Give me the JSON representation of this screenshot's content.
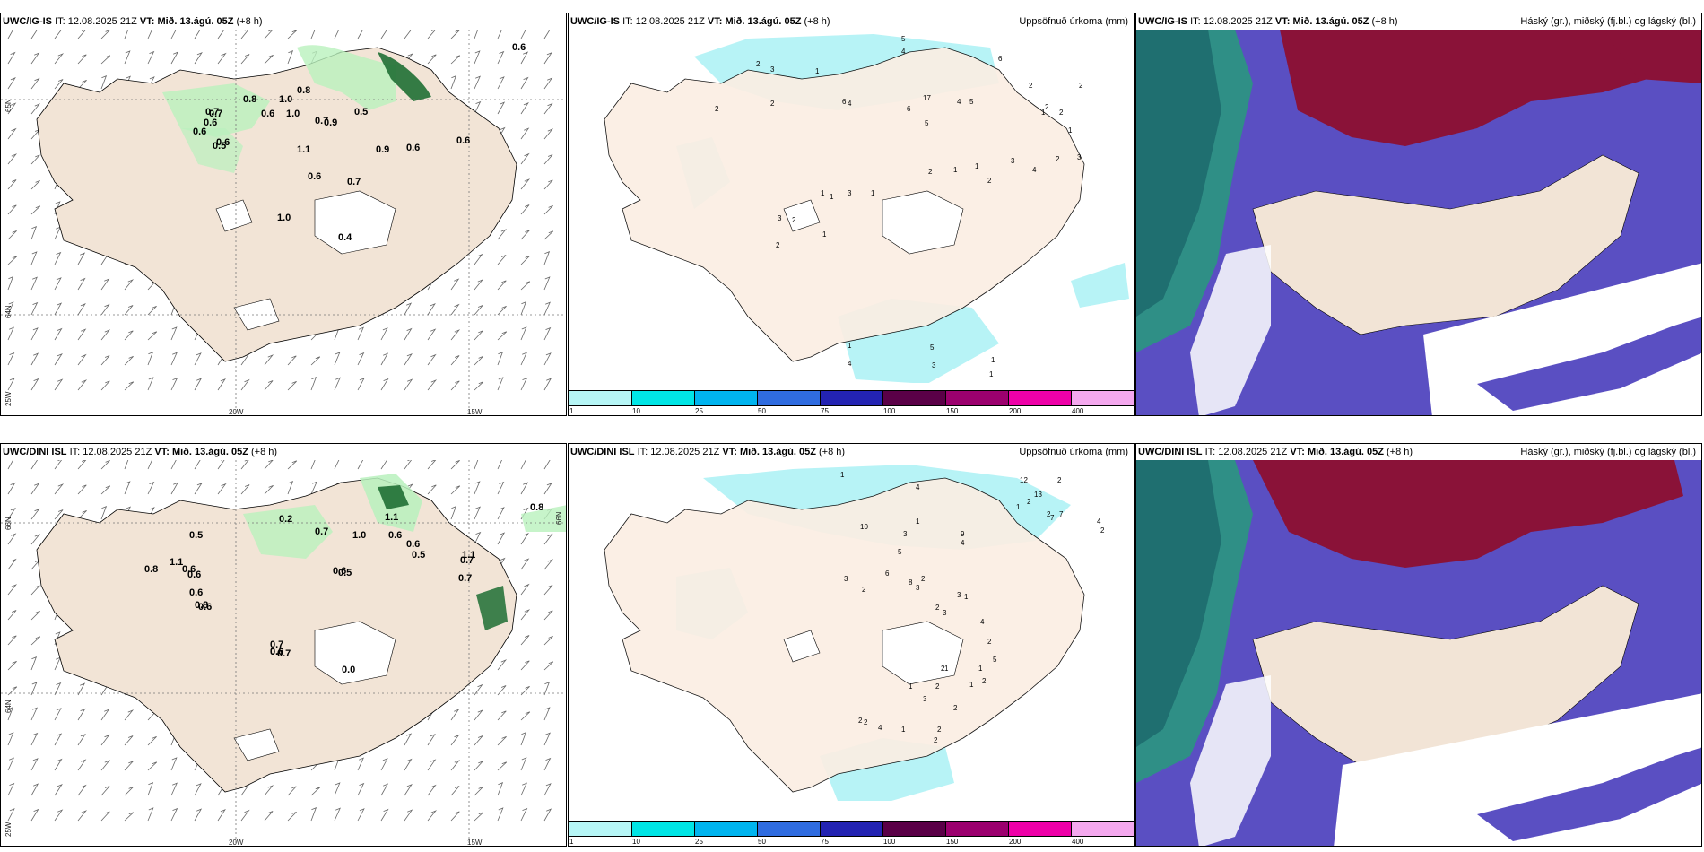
{
  "panels": {
    "p1": {
      "model": "UWC/IG-IS",
      "it_label": "IT:",
      "it_value": "12.08.2025 21Z",
      "vt_label": "VT:",
      "vt_value": "Mið. 13.ágú. 05Z",
      "lead": "(+8 h)",
      "right_title": "",
      "axis": {
        "lat1": "65N",
        "lat2": "64N",
        "lon1": "20W",
        "lon2": "15W",
        "edge": "25W"
      },
      "labels": [
        "0.6",
        "0.7",
        "0.8",
        "1.0",
        "0.8",
        "0.7",
        "0.9",
        "0.5",
        "1.1",
        "0.6",
        "0.6",
        "0.9",
        "0.6",
        "0.6",
        "0.7",
        "1.0",
        "0.4",
        "0.6",
        "0.5",
        "0.6",
        "0.7",
        "1.0",
        "0.6"
      ]
    },
    "p2": {
      "model": "UWC/IG-IS",
      "it_label": "IT:",
      "it_value": "12.08.2025 21Z",
      "vt_label": "VT:",
      "vt_value": "Mið. 13.ágú. 05Z",
      "lead": "(+8 h)",
      "right_title": "Uppsöfnuð úrkoma (mm)",
      "labels": [
        "5",
        "4",
        "2",
        "3",
        "2",
        "1",
        "6",
        "2",
        "4",
        "6",
        "5",
        "17",
        "4",
        "5",
        "6",
        "2",
        "2",
        "1",
        "1",
        "3",
        "2",
        "4",
        "3",
        "2",
        "1",
        "1",
        "2",
        "1",
        "3",
        "1",
        "1",
        "3",
        "2",
        "2",
        "1",
        "1",
        "4",
        "5",
        "3",
        "1",
        "1",
        "2",
        "2"
      ]
    },
    "p3": {
      "model": "UWC/IG-IS",
      "it_label": "IT:",
      "it_value": "12.08.2025 21Z",
      "vt_label": "VT:",
      "vt_value": "Mið. 13.ágú. 05Z",
      "lead": "(+8 h)",
      "right_title": "Háský (gr.), miðský (fj.bl.) og lágský (bl.)"
    },
    "p4": {
      "model": "UWC/DINI ISL",
      "it_label": "IT:",
      "it_value": "12.08.2025 21Z",
      "vt_label": "VT:",
      "vt_value": "Mið. 13.ágú. 05Z",
      "lead": "(+8 h)",
      "right_title": "",
      "axis": {
        "lat1": "66N",
        "lat2": "64N",
        "lon1": "20W",
        "lon2": "15W",
        "edge": "25W",
        "lat_right": "66N"
      },
      "labels": [
        "0.5",
        "0.8",
        "1.1",
        "0.6",
        "0.6",
        "0.6",
        "0.8",
        "0.5",
        "0.6",
        "0.7",
        "0.6",
        "0.2",
        "0.7",
        "1.0",
        "1.1",
        "0.6",
        "0.6",
        "0.5",
        "0.6",
        "0.7",
        "1.1",
        "0.7",
        "0.8",
        "0.6",
        "0.7",
        "0.0"
      ]
    },
    "p5": {
      "model": "UWC/DINI ISL",
      "it_label": "IT:",
      "it_value": "12.08.2025 21Z",
      "vt_label": "VT:",
      "vt_value": "Mið. 13.ágú. 05Z",
      "lead": "(+8 h)",
      "right_title": "Uppsöfnuð úrkoma (mm)",
      "labels": [
        "1",
        "4",
        "12",
        "2",
        "13",
        "2",
        "1",
        "2",
        "7",
        "7",
        "4",
        "2",
        "1",
        "3",
        "5",
        "10",
        "9",
        "4",
        "2",
        "3",
        "2",
        "6",
        "8",
        "3",
        "3",
        "1",
        "2",
        "3",
        "4",
        "2",
        "5",
        "1",
        "1",
        "2",
        "2",
        "1",
        "2",
        "1",
        "3",
        "2",
        "2",
        "2",
        "4",
        "1",
        "2",
        "2"
      ]
    },
    "p6": {
      "model": "UWC/DINI ISL",
      "it_label": "IT:",
      "it_value": "12.08.2025 21Z",
      "vt_label": "VT:",
      "vt_value": "Mið. 13.ágú. 05Z",
      "lead": "(+8 h)",
      "right_title": "Háský (gr.), miðský (fj.bl.) og lágský (bl.)"
    }
  },
  "legend": {
    "ticks": [
      "1",
      "10",
      "25",
      "50",
      "75",
      "100",
      "150",
      "200",
      "400"
    ],
    "colors": [
      "#b6f6f6",
      "#00e5e5",
      "#00b4ef",
      "#2f6ce0",
      "#2323b2",
      "#5a0047",
      "#9b006e",
      "#ee00a8",
      "#f4a8ee"
    ]
  },
  "colors": {
    "land": "#f2e4d6",
    "land_light": "#fbeee3",
    "precip_light": "#b9f1bd",
    "precip_dark": "#1f6f34",
    "rain_cyan": "#b7f3f6",
    "cloud_low": "#5a4fc2",
    "cloud_high": "#8a1238",
    "cloud_mid": "#1a8a7a"
  }
}
